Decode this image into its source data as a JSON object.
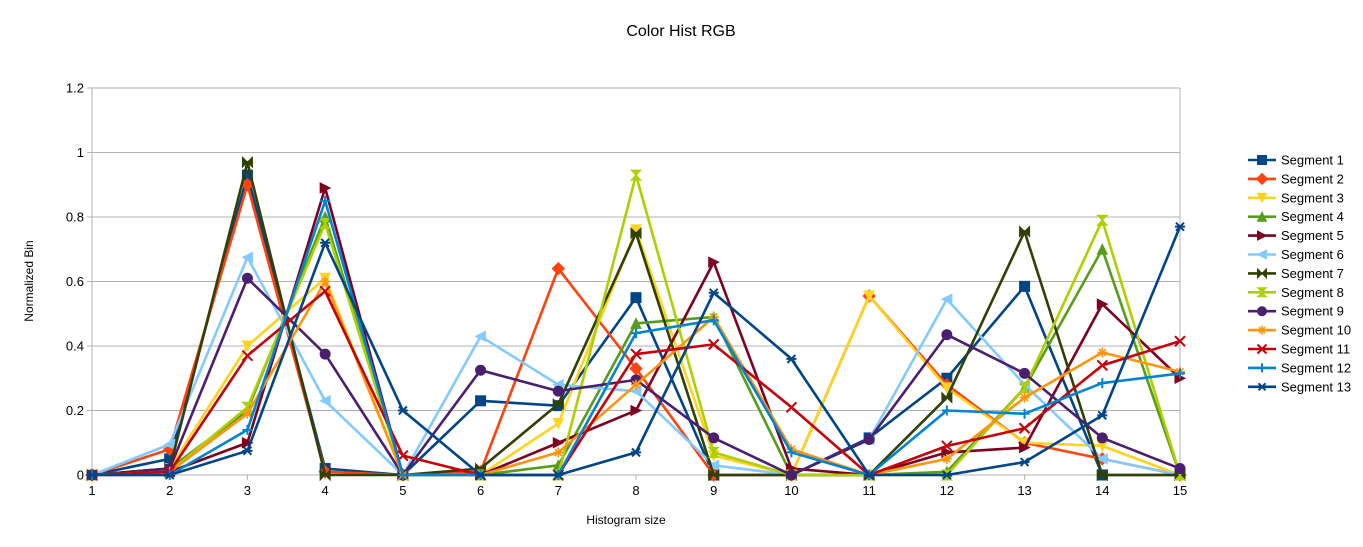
{
  "chart_data": {
    "type": "line",
    "title": "Color Hist RGB",
    "xlabel": "Histogram size",
    "ylabel": "Normalized Bin",
    "x": [
      1,
      2,
      3,
      4,
      5,
      6,
      7,
      8,
      9,
      10,
      11,
      12,
      13,
      14,
      15
    ],
    "y_ticks": [
      "0",
      "0.2",
      "0.4",
      "0.6",
      "0.8",
      "1",
      "1.2"
    ],
    "ylim": [
      0,
      1.2
    ],
    "grid": "horizontal",
    "legend_position": "right",
    "series": [
      {
        "name": "Segment 1",
        "color": "#004586",
        "marker": "square",
        "values": [
          0,
          0.05,
          0.93,
          0.02,
          0,
          0.23,
          0.215,
          0.55,
          0,
          0,
          0.115,
          0.3,
          0.585,
          0,
          0
        ]
      },
      {
        "name": "Segment 2",
        "color": "#ff420e",
        "marker": "diamond",
        "values": [
          0,
          0.08,
          0.9,
          0.01,
          0,
          0.01,
          0.64,
          0.33,
          0,
          0,
          0.555,
          0.28,
          0.1,
          0.05,
          0
        ]
      },
      {
        "name": "Segment 3",
        "color": "#ffd320",
        "marker": "triangle-down",
        "values": [
          0,
          0.02,
          0.4,
          0.61,
          0,
          0,
          0.16,
          0.76,
          0.06,
          0,
          0.555,
          0.27,
          0.1,
          0.09,
          0
        ]
      },
      {
        "name": "Segment 4",
        "color": "#579d1c",
        "marker": "triangle-up",
        "values": [
          0,
          0.02,
          0.2,
          0.8,
          0,
          0,
          0.03,
          0.47,
          0.49,
          0,
          0,
          0.01,
          0.27,
          0.7,
          0
        ]
      },
      {
        "name": "Segment 5",
        "color": "#7e0021",
        "marker": "triangle-right",
        "values": [
          0,
          0.01,
          0.1,
          0.89,
          0,
          0,
          0.1,
          0.2,
          0.66,
          0.02,
          0,
          0.07,
          0.085,
          0.53,
          0.3
        ]
      },
      {
        "name": "Segment 6",
        "color": "#83caff",
        "marker": "triangle-left",
        "values": [
          0,
          0.095,
          0.675,
          0.23,
          0,
          0.43,
          0.28,
          0.26,
          0.03,
          0,
          0.11,
          0.545,
          0.28,
          0.05,
          0
        ]
      },
      {
        "name": "Segment 7",
        "color": "#314004",
        "marker": "bowtie",
        "values": [
          0,
          0.02,
          0.97,
          0,
          0,
          0.02,
          0.22,
          0.75,
          0,
          0,
          0,
          0.24,
          0.755,
          0,
          0
        ]
      },
      {
        "name": "Segment 8",
        "color": "#aecf00",
        "marker": "hourglass",
        "values": [
          0,
          0.01,
          0.21,
          0.78,
          0,
          0,
          0,
          0.93,
          0.07,
          0,
          0,
          0,
          0.27,
          0.79,
          0
        ]
      },
      {
        "name": "Segment 9",
        "color": "#4b1f6f",
        "marker": "circle",
        "values": [
          0,
          0.02,
          0.61,
          0.375,
          0,
          0.325,
          0.26,
          0.295,
          0.115,
          0,
          0.11,
          0.435,
          0.315,
          0.115,
          0.02
        ]
      },
      {
        "name": "Segment 10",
        "color": "#ff950e",
        "marker": "star",
        "values": [
          0,
          0.01,
          0.19,
          0.6,
          0,
          0,
          0.07,
          0.28,
          0.49,
          0.08,
          0,
          0.05,
          0.24,
          0.38,
          0.32
        ]
      },
      {
        "name": "Segment 11",
        "color": "#c5000b",
        "marker": "x",
        "values": [
          0,
          0.01,
          0.37,
          0.57,
          0.06,
          0,
          0,
          0.375,
          0.405,
          0.21,
          0,
          0.09,
          0.145,
          0.34,
          0.415
        ]
      },
      {
        "name": "Segment 12",
        "color": "#0084d1",
        "marker": "plus",
        "values": [
          0,
          0,
          0.14,
          0.85,
          0,
          0,
          0,
          0.44,
          0.48,
          0.07,
          0,
          0.2,
          0.19,
          0.285,
          0.315
        ]
      },
      {
        "name": "Segment 13",
        "color": "#004586",
        "marker": "asterisk",
        "values": [
          0,
          0,
          0.075,
          0.72,
          0.2,
          0,
          0,
          0.07,
          0.565,
          0.36,
          0,
          0,
          0.04,
          0.185,
          0.77
        ]
      }
    ]
  }
}
